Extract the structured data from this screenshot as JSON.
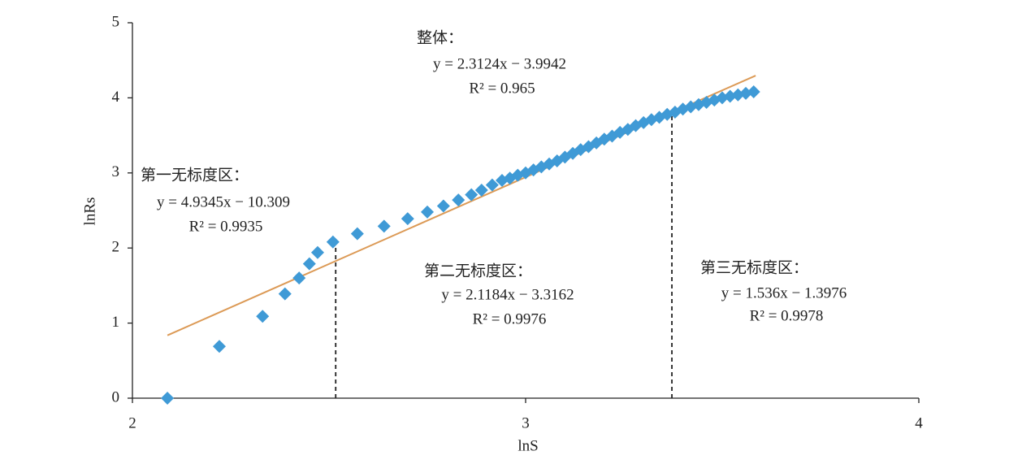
{
  "chart_data": {
    "type": "scatter",
    "x_label": "lnS",
    "y_label": "lnRs",
    "xlim": [
      2,
      4
    ],
    "xticks": [
      2,
      3,
      4
    ],
    "ylim": [
      0,
      5
    ],
    "yticks": [
      0,
      1,
      2,
      3,
      4,
      5
    ],
    "marker_color": "#3f9ad6",
    "x": [
      2.089,
      2.221,
      2.331,
      2.388,
      2.424,
      2.45,
      2.471,
      2.51,
      2.572,
      2.64,
      2.7,
      2.75,
      2.791,
      2.829,
      2.862,
      2.888,
      2.915,
      2.94,
      2.96,
      2.98,
      3.0,
      3.02,
      3.04,
      3.06,
      3.08,
      3.1,
      3.12,
      3.14,
      3.16,
      3.18,
      3.2,
      3.22,
      3.24,
      3.26,
      3.28,
      3.3,
      3.32,
      3.34,
      3.36,
      3.38,
      3.4,
      3.42,
      3.44,
      3.46,
      3.48,
      3.5,
      3.52,
      3.54,
      3.56,
      3.58
    ],
    "values": [
      0,
      0.69,
      1.09,
      1.39,
      1.6,
      1.79,
      1.94,
      2.08,
      2.19,
      2.29,
      2.39,
      2.48,
      2.56,
      2.64,
      2.71,
      2.77,
      2.84,
      2.9,
      2.93,
      2.97,
      3.0,
      3.04,
      3.08,
      3.12,
      3.16,
      3.21,
      3.26,
      3.31,
      3.35,
      3.4,
      3.45,
      3.49,
      3.54,
      3.58,
      3.63,
      3.67,
      3.71,
      3.74,
      3.78,
      3.81,
      3.85,
      3.88,
      3.91,
      3.94,
      3.97,
      4.0,
      4.02,
      4.04,
      4.06,
      4.08
    ],
    "trendline": {
      "color": "#dc9a56",
      "x": [
        2.089,
        3.585
      ],
      "values": [
        0.837,
        4.296
      ]
    },
    "vlines": [
      {
        "x": 2.517,
        "y": 2.08
      },
      {
        "x": 3.372,
        "y": 3.79
      }
    ],
    "annotations": [
      {
        "lines": [
          "整体：",
          "y = 2.3124x − 3.9942",
          "R² = 0.965"
        ]
      },
      {
        "lines": [
          "第一无标度区：",
          "y = 4.9345x − 10.309",
          "R² = 0.9935"
        ]
      },
      {
        "lines": [
          "第二无标度区：",
          "y = 2.1184x − 3.3162",
          "R² = 0.9976"
        ]
      },
      {
        "lines": [
          "第三无标度区：",
          "y = 1.536x − 1.3976",
          "R² = 0.9978"
        ]
      }
    ]
  }
}
